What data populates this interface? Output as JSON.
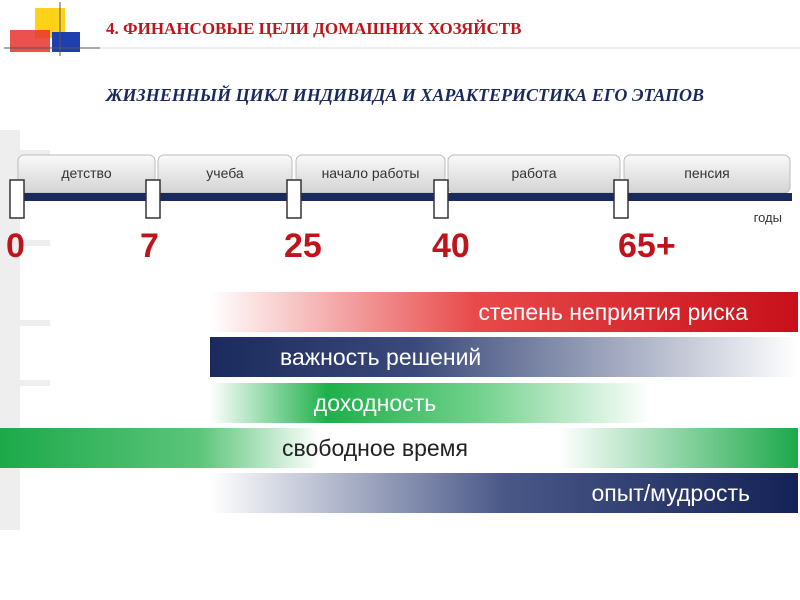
{
  "header": {
    "title": "4. ФИНАНСОВЫЕ ЦЕЛИ ДОМАШНИХ ХОЗЯЙСТВ",
    "subtitle": "ЖИЗНЕННЫЙ ЦИКЛ ИНДИВИДА И ХАРАКТЕРИСТИКА ЕГО ЭТАПОВ"
  },
  "timeline": {
    "stages": [
      "детство",
      "учеба",
      "начало работы",
      "работа",
      "пенсия"
    ],
    "ages": [
      "0",
      "7",
      "25",
      "40",
      "65+"
    ],
    "unit": "годы"
  },
  "bars": [
    "степень неприятия риска",
    "важность решений",
    "доходность",
    "свободное время",
    "опыт/мудрость"
  ]
}
